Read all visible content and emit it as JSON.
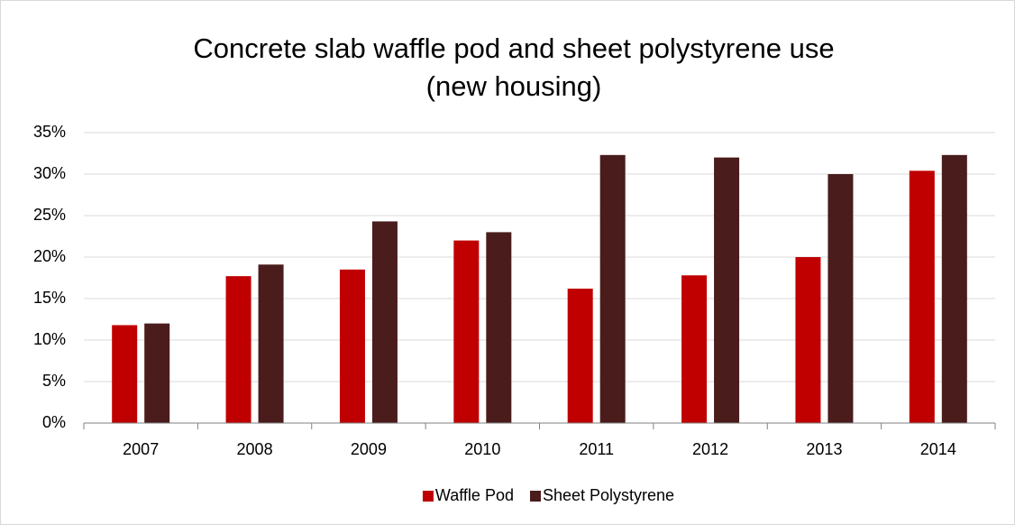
{
  "chart_data": {
    "type": "bar",
    "title": [
      "Concrete slab waffle pod and sheet polystyrene use",
      "(new housing)"
    ],
    "categories": [
      "2007",
      "2008",
      "2009",
      "2010",
      "2011",
      "2012",
      "2013",
      "2014"
    ],
    "series": [
      {
        "name": "Waffle Pod",
        "color": "#c00000",
        "values": [
          11.8,
          17.7,
          18.5,
          22.0,
          16.2,
          17.8,
          20.0,
          30.4
        ]
      },
      {
        "name": "Sheet Polystyrene",
        "color": "#4a1c1c",
        "values": [
          12.0,
          19.1,
          24.3,
          23.0,
          32.3,
          32.0,
          30.0,
          32.3
        ]
      }
    ],
    "ylim": [
      0,
      35
    ],
    "yticks": [
      {
        "value": 0,
        "label": "0%"
      },
      {
        "value": 5,
        "label": "5%"
      },
      {
        "value": 10,
        "label": "10%"
      },
      {
        "value": 15,
        "label": "15%"
      },
      {
        "value": 20,
        "label": "20%"
      },
      {
        "value": 25,
        "label": "25%"
      },
      {
        "value": 30,
        "label": "30%"
      },
      {
        "value": 35,
        "label": "35%"
      }
    ],
    "grid": true,
    "legend": "bottom"
  }
}
